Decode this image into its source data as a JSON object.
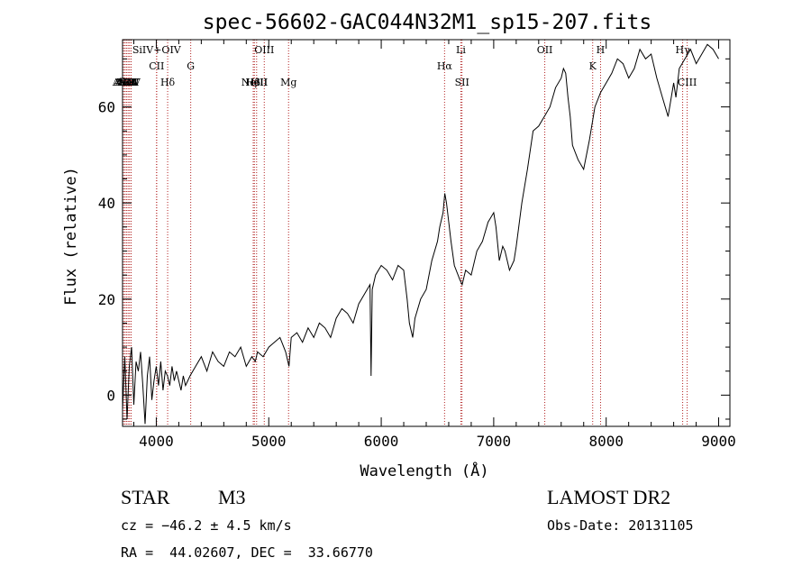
{
  "chart_data": {
    "type": "line",
    "title": "spec-56602-GAC044N32M1_sp15-207.fits",
    "xlabel": "Wavelength (Å)",
    "ylabel": "Flux (relative)",
    "xlim": [
      3700,
      9100
    ],
    "ylim": [
      -6.5,
      74
    ],
    "xticks": [
      4000,
      5000,
      6000,
      7000,
      8000,
      9000
    ],
    "yticks": [
      0,
      20,
      40,
      60
    ],
    "series": [
      {
        "x": [
          3700,
          3720,
          3740,
          3760,
          3780,
          3800,
          3820,
          3840,
          3860,
          3880,
          3900,
          3920,
          3940,
          3960,
          3980,
          4000,
          4020,
          4040,
          4060,
          4080,
          4100,
          4120,
          4140,
          4160,
          4180,
          4200,
          4220,
          4240,
          4260,
          4280,
          4300,
          4350,
          4400,
          4450,
          4500,
          4550,
          4600,
          4650,
          4700,
          4750,
          4800,
          4850,
          4880,
          4900,
          4950,
          5000,
          5050,
          5100,
          5150,
          5180,
          5200,
          5250,
          5300,
          5350,
          5400,
          5450,
          5500,
          5550,
          5600,
          5650,
          5700,
          5750,
          5800,
          5850,
          5900,
          5910,
          5920,
          5950,
          6000,
          6050,
          6100,
          6150,
          6200,
          6230,
          6250,
          6280,
          6300,
          6350,
          6400,
          6450,
          6500,
          6520,
          6550,
          6565,
          6580,
          6600,
          6620,
          6650,
          6700,
          6720,
          6750,
          6800,
          6850,
          6900,
          6950,
          7000,
          7020,
          7050,
          7080,
          7100,
          7120,
          7140,
          7160,
          7180,
          7200,
          7250,
          7300,
          7350,
          7400,
          7450,
          7500,
          7550,
          7600,
          7620,
          7640,
          7660,
          7680,
          7700,
          7750,
          7800,
          7850,
          7900,
          7950,
          8000,
          8050,
          8100,
          8150,
          8200,
          8250,
          8300,
          8350,
          8400,
          8450,
          8500,
          8550,
          8600,
          8620,
          8650,
          8700,
          8750,
          8800,
          8850,
          8900,
          8950,
          9000
        ],
        "values": [
          -3,
          8,
          -5,
          6,
          10,
          -2,
          7,
          5,
          9,
          2,
          -6,
          4,
          8,
          -1,
          3,
          6,
          2,
          7,
          1,
          5,
          4,
          2,
          6,
          3,
          5,
          3,
          1,
          4,
          2,
          3,
          4,
          6,
          8,
          5,
          9,
          7,
          6,
          9,
          8,
          10,
          6,
          8,
          7,
          9,
          8,
          10,
          11,
          12,
          9,
          6,
          12,
          13,
          11,
          14,
          12,
          15,
          14,
          12,
          16,
          18,
          17,
          15,
          19,
          21,
          23,
          4,
          22,
          25,
          27,
          26,
          24,
          27,
          26,
          20,
          15,
          12,
          16,
          20,
          22,
          28,
          32,
          35,
          38,
          42,
          40,
          36,
          32,
          27,
          24,
          23,
          26,
          25,
          30,
          32,
          36,
          38,
          35,
          28,
          31,
          30,
          28,
          26,
          27,
          28,
          31,
          40,
          47,
          55,
          56,
          58,
          60,
          64,
          66,
          68,
          67,
          62,
          58,
          52,
          49,
          47,
          53,
          60,
          63,
          65,
          67,
          70,
          69,
          66,
          68,
          72,
          70,
          71,
          66,
          62,
          58,
          65,
          62,
          68,
          70,
          72,
          69,
          71,
          73,
          72,
          70
        ]
      }
    ],
    "line_labels": [
      {
        "name": "AlIII",
        "wl": 3709,
        "row": 3
      },
      {
        "name": "AlIII",
        "wl": 3722,
        "row": 3
      },
      {
        "name": "AlIII",
        "wl": 3735,
        "row": 3
      },
      {
        "name": "NeV",
        "wl": 3749,
        "row": 3
      },
      {
        "name": "NeV",
        "wl": 3762,
        "row": 3
      },
      {
        "name": "OII",
        "wl": 3776,
        "row": 3
      },
      {
        "name": "SiIV+OIV",
        "wl": 4003,
        "row": 0
      },
      {
        "name": "CII",
        "wl": 4003,
        "row": 1
      },
      {
        "name": "Hδ",
        "wl": 4101,
        "row": 2
      },
      {
        "name": "G",
        "wl": 4306,
        "row": 1
      },
      {
        "name": "NeIII",
        "wl": 4872,
        "row": 2
      },
      {
        "name": "Hβ",
        "wl": 4862,
        "row": 2
      },
      {
        "name": "HeII",
        "wl": 4892,
        "row": 2
      },
      {
        "name": "OIII",
        "wl": 4960,
        "row": 0
      },
      {
        "name": "Mg",
        "wl": 5176,
        "row": 3
      },
      {
        "name": "Hα",
        "wl": 6563,
        "row": 1
      },
      {
        "name": "Li",
        "wl": 6708,
        "row": 0
      },
      {
        "name": "SII",
        "wl": 6718,
        "row": 2
      },
      {
        "name": "OII",
        "wl": 7454,
        "row": 0
      },
      {
        "name": "K",
        "wl": 7880,
        "row": 1
      },
      {
        "name": "H",
        "wl": 7950,
        "row": 0
      },
      {
        "name": "Hγ",
        "wl": 8680,
        "row": 0
      },
      {
        "name": "CIII",
        "wl": 8720,
        "row": 3
      }
    ]
  },
  "footer": {
    "object_class": "STAR",
    "subclass": "M3",
    "cz": "cz = −46.2 ± 4.5 km/s",
    "radec": "RA =  44.02607, DEC =  33.66770",
    "survey": "LAMOST DR2",
    "obs_date": "Obs-Date: 20131105"
  }
}
